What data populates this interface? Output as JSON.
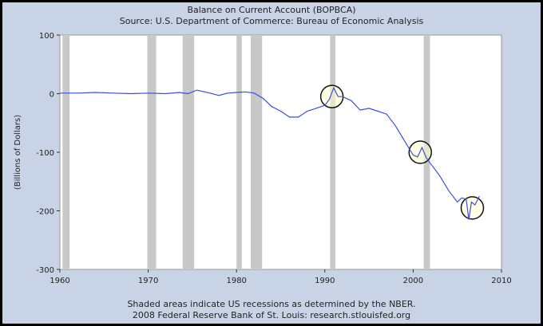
{
  "colors": {
    "frame_background": "#c8d4e6",
    "plot_background": "#ffffff",
    "line": "#3a4ee0",
    "recession": "#c8c8c8",
    "highlight_fill": "#ffffcc",
    "highlight_stroke": "#111111"
  },
  "chart_data": {
    "type": "line",
    "title": "Balance on Current Account (BOPBCA)",
    "subtitle": "Source: U.S. Department of Commerce: Bureau of Economic Analysis",
    "xlabel": "",
    "ylabel": "(Billions of Dollars)",
    "xlim": [
      1960,
      2010
    ],
    "ylim": [
      -300,
      100
    ],
    "x_ticks": [
      "1960",
      "1970",
      "1980",
      "1990",
      "2000",
      "2010"
    ],
    "y_ticks": [
      "100",
      "0",
      "-100",
      "-200",
      "-300"
    ],
    "grid": false,
    "recession_periods": [
      [
        1960.3,
        1961.1
      ],
      [
        1969.9,
        1970.9
      ],
      [
        1973.9,
        1975.2
      ],
      [
        1980.0,
        1980.6
      ],
      [
        1981.6,
        1982.9
      ],
      [
        1990.6,
        1991.2
      ],
      [
        2001.2,
        2001.9
      ]
    ],
    "series": [
      {
        "x": [
          1960,
          1962,
          1964,
          1966,
          1968,
          1970,
          1972,
          1973.5,
          1974.5,
          1975.5,
          1977,
          1978,
          1979,
          1980,
          1981,
          1982,
          1983,
          1984,
          1985,
          1986,
          1987,
          1988,
          1989,
          1990,
          1990.5,
          1991.0,
          1991.5,
          1992,
          1993,
          1994,
          1995,
          1996,
          1997,
          1998,
          1999,
          2000,
          2000.5,
          2001,
          2001.5,
          2002,
          2003,
          2004,
          2005,
          2005.5,
          2006,
          2006.3,
          2006.6,
          2007,
          2007.5
        ],
        "values": [
          1,
          1,
          2,
          1,
          0,
          1,
          0,
          2,
          0,
          6,
          1,
          -3,
          1,
          2,
          3,
          1,
          -8,
          -22,
          -30,
          -40,
          -40,
          -30,
          -25,
          -20,
          -10,
          10,
          -5,
          -5,
          -12,
          -28,
          -25,
          -30,
          -35,
          -55,
          -80,
          -105,
          -108,
          -92,
          -110,
          -120,
          -140,
          -165,
          -185,
          -178,
          -180,
          -215,
          -185,
          -190,
          -175
        ]
      }
    ],
    "highlights": [
      {
        "x": 1990.8,
        "y": -5
      },
      {
        "x": 2000.8,
        "y": -100
      },
      {
        "x": 2006.7,
        "y": -195
      }
    ]
  },
  "footer": {
    "note": "Shaded areas indicate US recessions as determined by the NBER.",
    "credit": "2008 Federal Reserve Bank of St. Louis: research.stlouisfed.org"
  }
}
